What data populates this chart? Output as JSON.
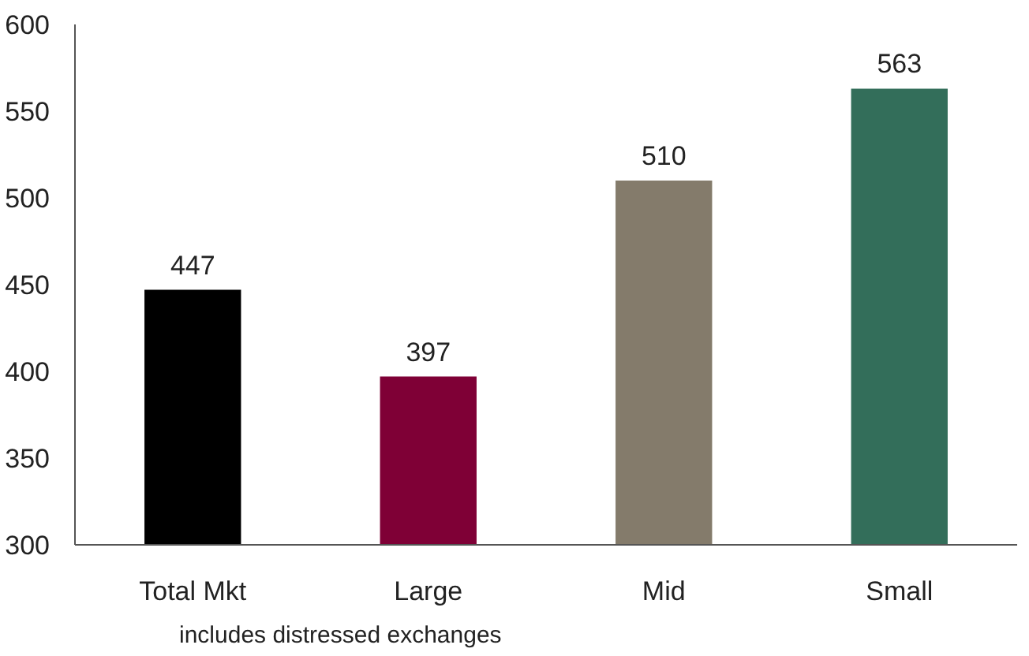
{
  "chart_data": {
    "type": "bar",
    "categories": [
      "Total Mkt",
      "Large",
      "Mid",
      "Small"
    ],
    "values": [
      447,
      397,
      510,
      563
    ],
    "colors": [
      "#000000",
      "#7f0036",
      "#847b6b",
      "#336e5a"
    ],
    "ylim": [
      300,
      600
    ],
    "yticks": [
      300,
      350,
      400,
      450,
      500,
      550,
      600
    ],
    "data_labels": true,
    "grid": false,
    "annotations": [
      "includes distressed exchanges"
    ]
  }
}
